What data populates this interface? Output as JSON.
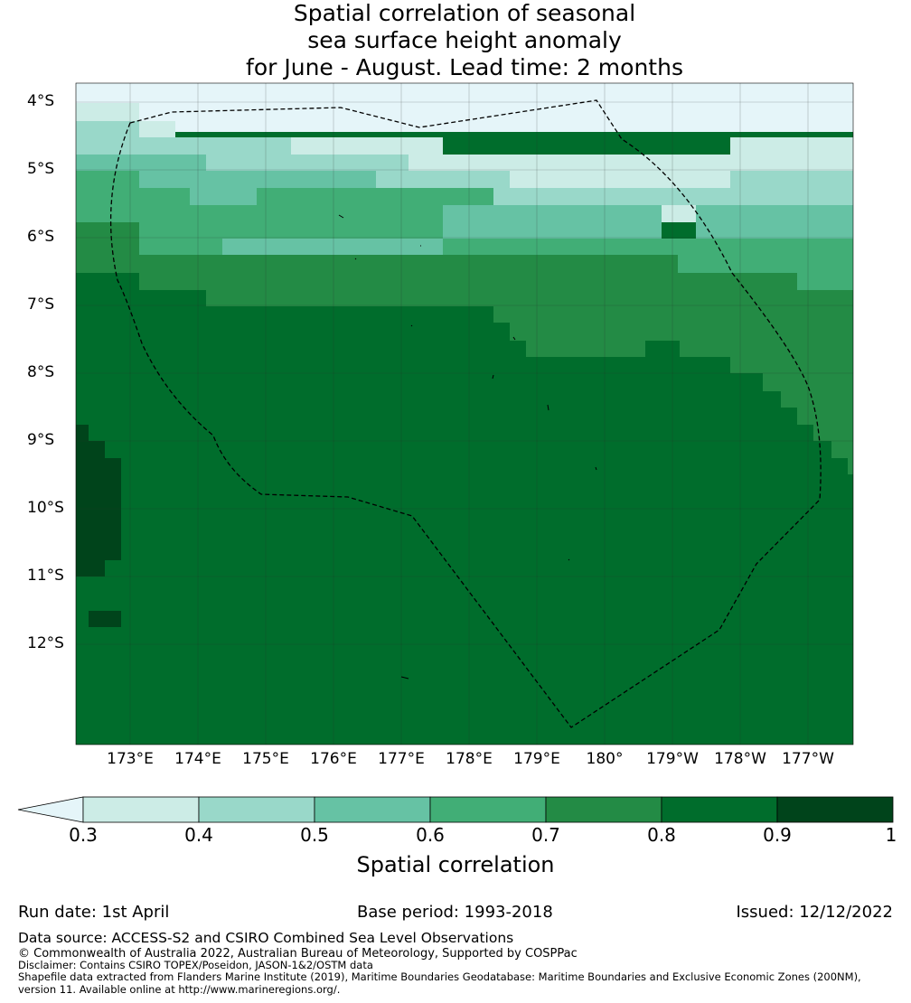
{
  "title_lines": [
    "Spatial correlation of seasonal",
    "sea surface height anomaly",
    "for June - August. Lead time: 2 months"
  ],
  "map": {
    "lat_labels": [
      "4°S",
      "5°S",
      "6°S",
      "7°S",
      "8°S",
      "9°S",
      "10°S",
      "11°S",
      "12°S"
    ],
    "lon_labels": [
      "173°E",
      "174°E",
      "175°E",
      "176°E",
      "177°E",
      "178°E",
      "179°E",
      "180°",
      "179°W",
      "178°W",
      "177°W"
    ],
    "lat_values": [
      -4,
      -5,
      -6,
      -7,
      -8,
      -9,
      -10,
      -11,
      -12
    ],
    "lon_values": [
      173,
      174,
      175,
      176,
      177,
      178,
      179,
      180,
      181,
      182,
      183
    ],
    "extent": {
      "lon_min": 172.2,
      "lon_max": 183.7,
      "lat_min": -13.5,
      "lat_max": -3.7
    },
    "boundary_style": "dashed",
    "grid": true
  },
  "colorbar": {
    "ticks": [
      "0.3",
      "0.4",
      "0.5",
      "0.6",
      "0.7",
      "0.8",
      "0.9",
      "1"
    ],
    "colors": [
      "#ccece6",
      "#99d8c9",
      "#66c2a4",
      "#41ae76",
      "#238b45",
      "#006d2c",
      "#00441b"
    ],
    "under_color": "#e5f5f9",
    "label": "Spatial correlation"
  },
  "footer": {
    "run_date": "Run date: 1st April",
    "base_period": "Base period: 1993-2018",
    "issued": "Issued: 12/12/2022",
    "data_source": "Data source: ACCESS-S2 and CSIRO Combined Sea Level Observations",
    "copyright": "© Commonwealth of Australia 2022, Australian Bureau of Meteorology, Supported by COSPPac",
    "disclaimer": "Disclaimer: Contains CSIRO TOPEX/Poseidon, JASON-1&2/OSTM data",
    "shapefile": "Shapefile data extracted from Flanders Marine Institute (2019), Maritime Boundaries Geodatabase: Maritime Boundaries and Exclusive Economic Zones (200NM),",
    "shapefile_2": "version 11. Available online at http://www.marineregions.org/."
  }
}
